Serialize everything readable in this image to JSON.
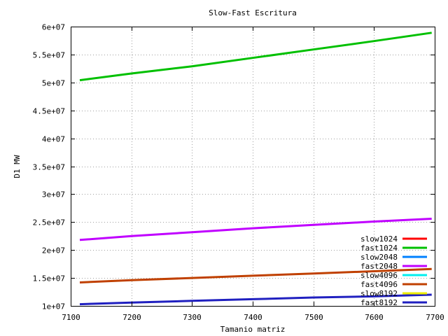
{
  "chart_data": {
    "type": "line",
    "title": "Slow-Fast Escritura",
    "xlabel": "Tamanio matriz",
    "ylabel": "D1 MW",
    "xlim": [
      7100,
      7700
    ],
    "ylim": [
      10000000,
      60000000
    ],
    "xticks": [
      7100,
      7200,
      7300,
      7400,
      7500,
      7600,
      7700
    ],
    "yticks": [
      10000000,
      15000000,
      20000000,
      25000000,
      30000000,
      35000000,
      40000000,
      45000000,
      50000000,
      55000000,
      60000000
    ],
    "xtick_labels": [
      "7100",
      "7200",
      "7300",
      "7400",
      "7500",
      "7600",
      "7700"
    ],
    "ytick_labels": [
      "1e+07",
      "1.5e+07",
      "2e+07",
      "2.5e+07",
      "3e+07",
      "3.5e+07",
      "4e+07",
      "4.5e+07",
      "5e+07",
      "5.5e+07",
      "6e+07"
    ],
    "grid": true,
    "legend_position": "bottom-right",
    "series": [
      {
        "name": "slow1024",
        "color": "#ff0000",
        "x": [],
        "y": []
      },
      {
        "name": "fast1024",
        "color": "#00c000",
        "x": [
          7115,
          7200,
          7300,
          7400,
          7500,
          7600,
          7695
        ],
        "y": [
          50400000,
          51600000,
          52900000,
          54400000,
          55900000,
          57400000,
          58900000
        ]
      },
      {
        "name": "slow2048",
        "color": "#0080ff",
        "x": [],
        "y": []
      },
      {
        "name": "fast2048",
        "color": "#c000ff",
        "x": [
          7115,
          7200,
          7300,
          7400,
          7500,
          7600,
          7695
        ],
        "y": [
          21800000,
          22500000,
          23200000,
          23900000,
          24500000,
          25100000,
          25600000
        ]
      },
      {
        "name": "slow4096",
        "color": "#00eeee",
        "x": [],
        "y": []
      },
      {
        "name": "fast4096",
        "color": "#c04000",
        "x": [
          7115,
          7200,
          7300,
          7400,
          7500,
          7600,
          7695
        ],
        "y": [
          14200000,
          14600000,
          15000000,
          15400000,
          15800000,
          16200000,
          16600000
        ]
      },
      {
        "name": "slow8192",
        "color": "#eeee00",
        "x": [],
        "y": []
      },
      {
        "name": "fast8192",
        "color": "#2020c0",
        "x": [
          7115,
          7200,
          7300,
          7400,
          7500,
          7600,
          7695
        ],
        "y": [
          10300000,
          10600000,
          10900000,
          11200000,
          11500000,
          11700000,
          12000000
        ]
      }
    ]
  }
}
